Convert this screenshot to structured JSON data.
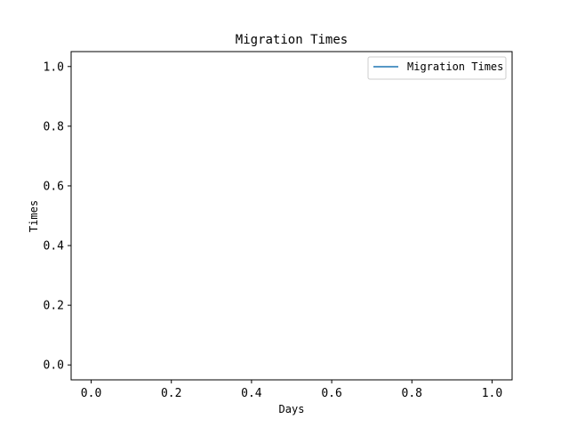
{
  "chart_data": {
    "type": "line",
    "title": "Migration Times",
    "xlabel": "Days",
    "ylabel": "Times",
    "xlim": [
      -0.05,
      1.05
    ],
    "ylim": [
      -0.05,
      1.05
    ],
    "xticks": [
      0.0,
      0.2,
      0.4,
      0.6,
      0.8,
      1.0
    ],
    "xtick_labels": [
      "0.0",
      "0.2",
      "0.4",
      "0.6",
      "0.8",
      "1.0"
    ],
    "yticks": [
      0.0,
      0.2,
      0.4,
      0.6,
      0.8,
      1.0
    ],
    "ytick_labels": [
      "0.0",
      "0.2",
      "0.4",
      "0.6",
      "0.8",
      "1.0"
    ],
    "grid": false,
    "legend_position": "top-right",
    "series": [
      {
        "name": "Migration Times",
        "color": "#1f77b4",
        "x": [],
        "y": []
      }
    ]
  }
}
